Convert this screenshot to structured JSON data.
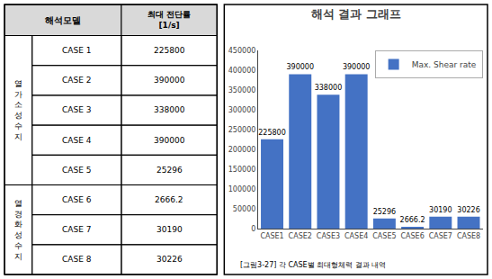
{
  "chart_data": [
    {
      "type": "table",
      "header": [
        "해석모델",
        "최대 전단률\n[1/s]"
      ],
      "color": "#d9d9d9",
      "groups": [
        {
          "label": "열\n가\n소\n성\n수\n지",
          "rows": [
            [
              "CASE 1",
              "225800"
            ],
            [
              "CASE 2",
              "390000"
            ],
            [
              "CASE 3",
              "338000"
            ],
            [
              "CASE 4",
              "390000"
            ],
            [
              "CASE 5",
              "25296"
            ]
          ]
        },
        {
          "label": "열\n경\n화\n성\n수\n지",
          "rows": [
            [
              "CASE 6",
              "2666.2"
            ],
            [
              "CASE 7",
              "30190"
            ],
            [
              "CASE 8",
              "30226"
            ]
          ]
        }
      ]
    },
    {
      "type": "bar",
      "title": "해석 결과 그래프",
      "categories": [
        "CASE1",
        "CASE2",
        "CASE3",
        "CASE4",
        "CASE5",
        "CASE6",
        "CASE7",
        "CASE8"
      ],
      "series": [
        {
          "name": "Max. Shear rate",
          "color": "#4472C4",
          "values": [
            225800,
            390000,
            338000,
            390000,
            25296,
            2666.2,
            30190,
            30226
          ]
        }
      ],
      "ylim": [
        0,
        450000
      ],
      "yticks": [
        0,
        50000,
        100000,
        150000,
        200000,
        250000,
        300000,
        350000,
        400000,
        450000
      ],
      "data_labels": true,
      "legend": "upper right",
      "grid": false,
      "annotations": [
        "[그림3-27] 각 CASE별 최대형체력 결과 내역"
      ]
    }
  ]
}
